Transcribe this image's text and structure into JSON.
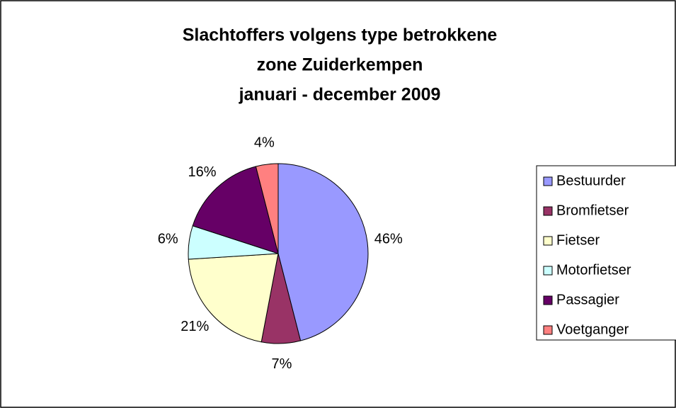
{
  "chart_data": {
    "type": "pie",
    "title": [
      "Slachtoffers volgens type betrokkene",
      "zone Zuiderkempen",
      "januari - december 2009"
    ],
    "categories": [
      "Bestuurder",
      "Bromfietser",
      "Fietser",
      "Motorfietser",
      "Passagier",
      "Voetganger"
    ],
    "values": [
      46,
      7,
      21,
      6,
      16,
      4
    ],
    "value_labels": [
      "46%",
      "7%",
      "21%",
      "6%",
      "16%",
      "4%"
    ],
    "colors": [
      "#9999ff",
      "#993366",
      "#ffffcc",
      "#ccffff",
      "#660066",
      "#ff8080"
    ],
    "legend": "right"
  }
}
